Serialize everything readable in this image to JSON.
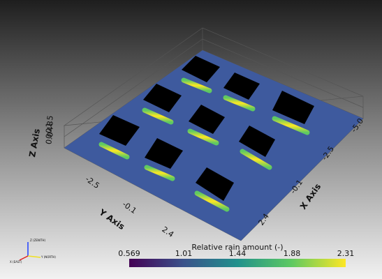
{
  "axes": {
    "z_axis": {
      "title": "Z Axis",
      "ticks": [
        "1.5",
        "0.8",
        "0.4",
        "0.0"
      ]
    },
    "y_axis": {
      "title": "Y Axis",
      "ticks": [
        "-2.5",
        "-0.1",
        "2.4"
      ]
    },
    "x_axis": {
      "title": "X Axis",
      "ticks": [
        "-5.0",
        "-2.5",
        "-0.1",
        "2.4"
      ]
    }
  },
  "orientation": {
    "z": "Z (ZENITH)",
    "x": "X (EAST)",
    "y": "Y (NORTH)"
  },
  "colorbar": {
    "title": "Relative rain amount (-)",
    "ticks": [
      "0.569",
      "1.01",
      "1.44",
      "1.88",
      "2.31"
    ]
  }
}
